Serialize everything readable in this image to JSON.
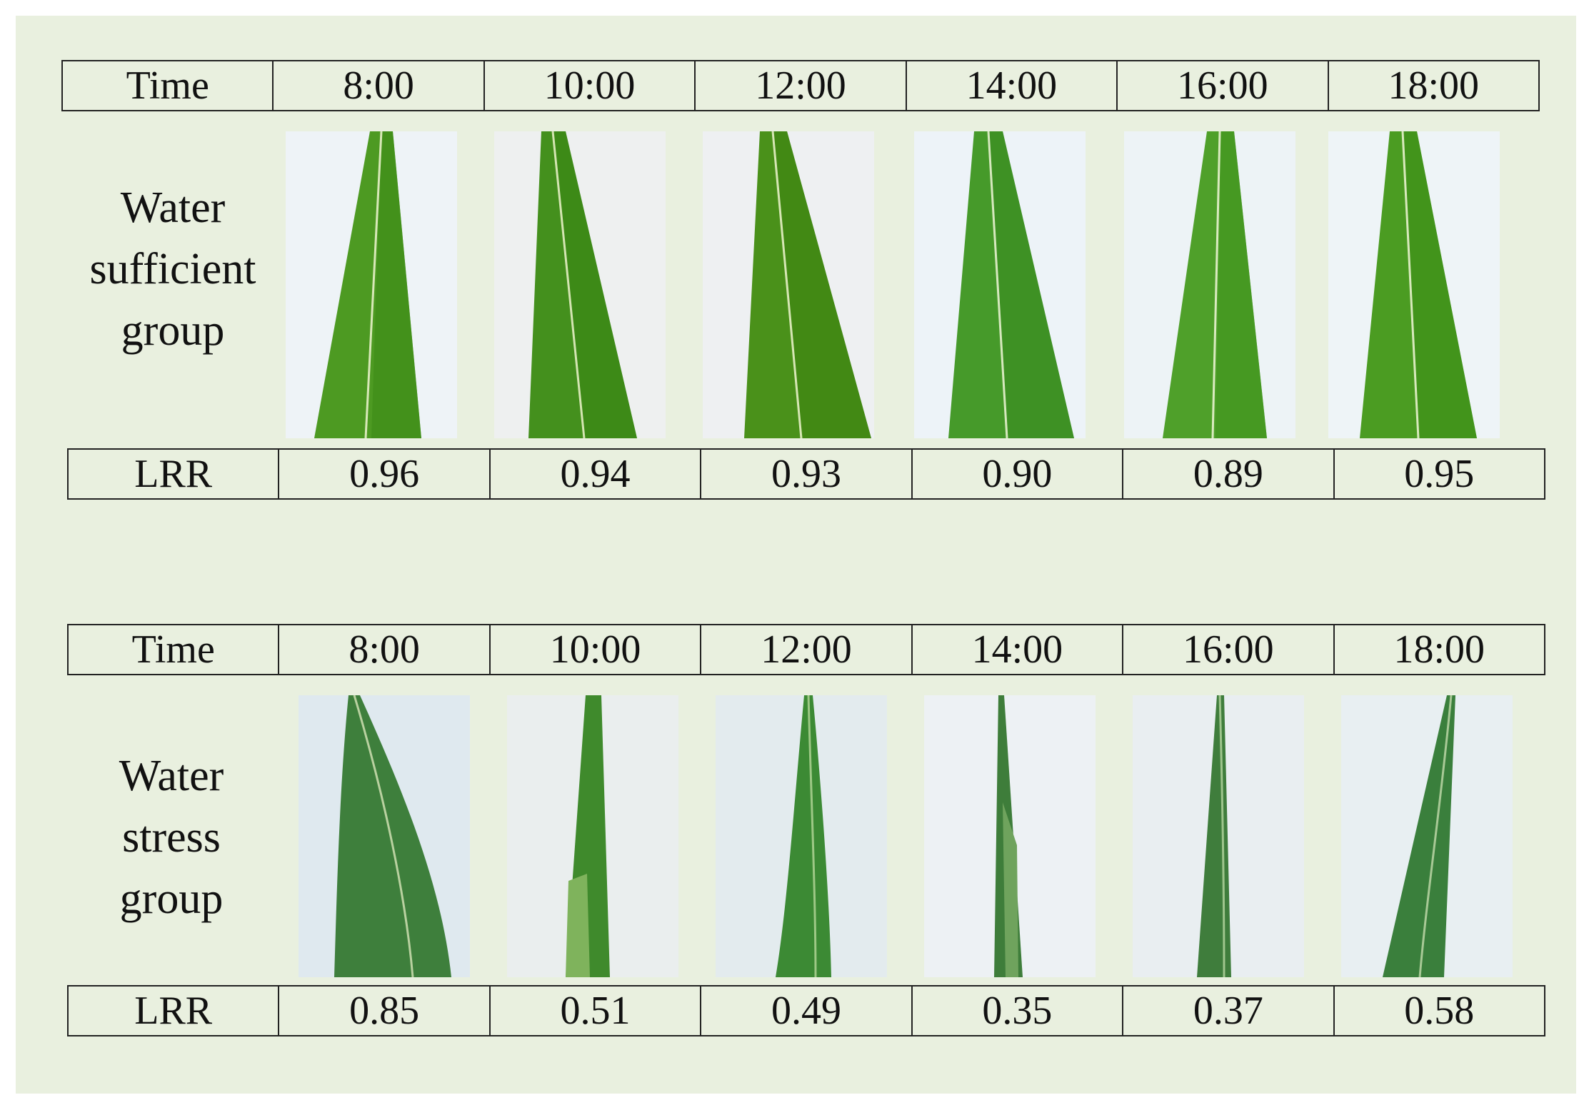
{
  "figure": {
    "background_color": "#e9f0df",
    "sufficient": {
      "header_label": "Time",
      "times": [
        "8:00",
        "10:00",
        "12:00",
        "14:00",
        "16:00",
        "18:00"
      ],
      "group_label_lines": [
        "Water",
        "sufficient",
        "group"
      ],
      "metric_label": "LRR",
      "lrr_values": [
        "0.96",
        "0.94",
        "0.93",
        "0.90",
        "0.89",
        "0.95"
      ]
    },
    "stress": {
      "header_label": "Time",
      "times": [
        "8:00",
        "10:00",
        "12:00",
        "14:00",
        "16:00",
        "18:00"
      ],
      "group_label_lines": [
        "Water",
        "stress",
        "group"
      ],
      "metric_label": "LRR",
      "lrr_values": [
        "0.85",
        "0.51",
        "0.49",
        "0.35",
        "0.37",
        "0.58"
      ]
    },
    "photos": {
      "sufficient": [
        "leaf-photo-icon",
        "leaf-photo-icon",
        "leaf-photo-icon",
        "leaf-photo-icon",
        "leaf-photo-icon",
        "leaf-photo-icon"
      ],
      "stress": [
        "rolled-leaf-photo-icon",
        "rolled-leaf-photo-icon",
        "rolled-leaf-photo-icon",
        "rolled-leaf-photo-icon",
        "rolled-leaf-photo-icon",
        "rolled-leaf-photo-icon"
      ]
    }
  }
}
